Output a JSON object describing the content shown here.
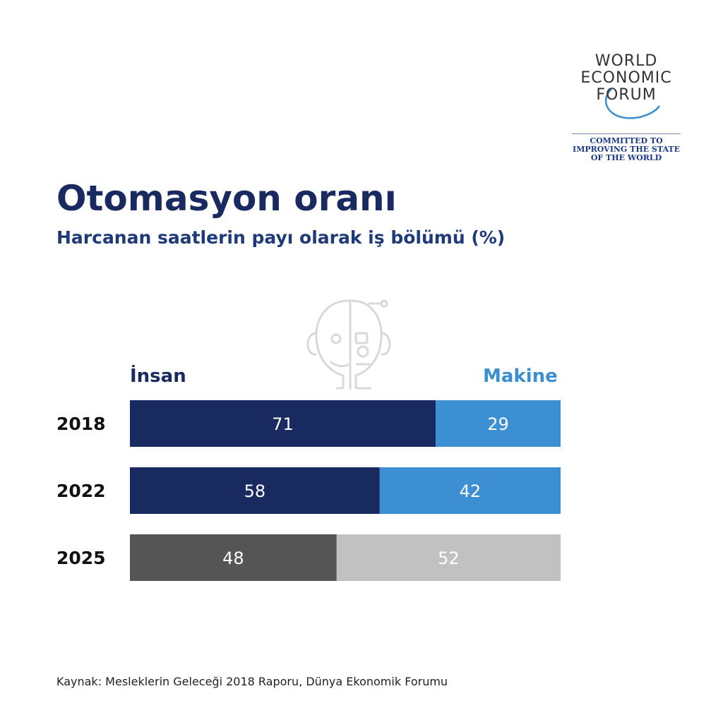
{
  "logo": {
    "lines": [
      "WORLD",
      "ECONOMIC",
      "FORUM"
    ],
    "tagline": [
      "COMMITTED TO",
      "IMPROVING THE STATE",
      "OF THE WORLD"
    ]
  },
  "header": {
    "title": "Otomasyon oranı",
    "subtitle": "Harcanan saatlerin payı olarak iş bölümü (%)"
  },
  "icon": "human-robot-face-icon",
  "source": "Kaynak: Mesleklerin Geleceği 2018 Raporu, Dünya Ekonomik Forumu",
  "chart_data": {
    "type": "bar",
    "orientation": "horizontal-stacked",
    "title": "Otomasyon oranı",
    "subtitle": "Harcanan saatlerin payı olarak iş bölümü (%)",
    "categories": [
      "2018",
      "2022",
      "2025"
    ],
    "series": [
      {
        "name": "İnsan",
        "values": [
          71,
          58,
          48
        ],
        "colors": [
          "#182a5f",
          "#182a5f",
          "#555555"
        ]
      },
      {
        "name": "Makine",
        "values": [
          29,
          42,
          52
        ],
        "colors": [
          "#3b8fd2",
          "#3b8fd2",
          "#c1c1c1"
        ]
      }
    ],
    "xlim": [
      0,
      100
    ],
    "grid": false,
    "legend": "top"
  }
}
